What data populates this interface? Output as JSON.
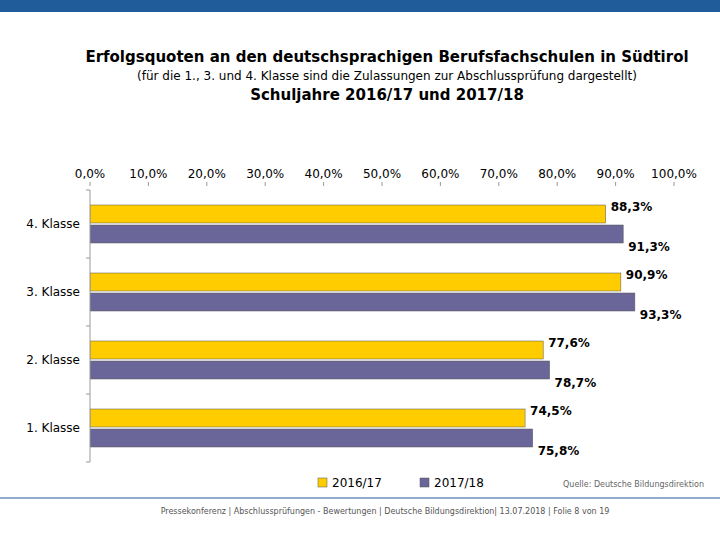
{
  "chart_data": {
    "type": "bar",
    "orientation": "horizontal",
    "title": "Erfolgsquoten an den deutschsprachigen Berufsfachschulen in Südtirol",
    "subtitle": "(für die 1., 3. und 4. Klasse sind die Zulassungen zur Abschlussprüfung dargestellt)",
    "period": "Schuljahre 2016/17 und 2017/18",
    "source": "Quelle: Deutsche Bildungsdirektion",
    "footer": "Pressekonferenz | Abschlussprüfungen - Bewertungen | Deutsche Bildungsdirektion| 13.07.2018 | Folie 8 von 19",
    "categories": [
      "4. Klasse",
      "3. Klasse",
      "2. Klasse",
      "1. Klasse"
    ],
    "series": [
      {
        "name": "2016/17",
        "color": "#ffcc00",
        "values": [
          88.3,
          90.9,
          77.6,
          74.5
        ],
        "value_labels": [
          "88,3%",
          "90,9%",
          "77,6%",
          "74,5%"
        ]
      },
      {
        "name": "2017/18",
        "color": "#6b6699",
        "values": [
          91.3,
          93.3,
          78.7,
          75.8
        ],
        "value_labels": [
          "91,3%",
          "93,3%",
          "78,7%",
          "75,8%"
        ]
      }
    ],
    "xlim": [
      0,
      100
    ],
    "xticks": [
      {
        "value": 0,
        "label": "0,0%"
      },
      {
        "value": 10,
        "label": "10,0%"
      },
      {
        "value": 20,
        "label": "20,0%"
      },
      {
        "value": 30,
        "label": "30,0%"
      },
      {
        "value": 40,
        "label": "40,0%"
      },
      {
        "value": 50,
        "label": "50,0%"
      },
      {
        "value": 60,
        "label": "60,0%"
      },
      {
        "value": 70,
        "label": "70,0%"
      },
      {
        "value": 80,
        "label": "80,0%"
      },
      {
        "value": 90,
        "label": "90,0%"
      },
      {
        "value": 100,
        "label": "100,0%"
      }
    ],
    "grid": false,
    "data_labels": true,
    "legend": "bottom"
  }
}
